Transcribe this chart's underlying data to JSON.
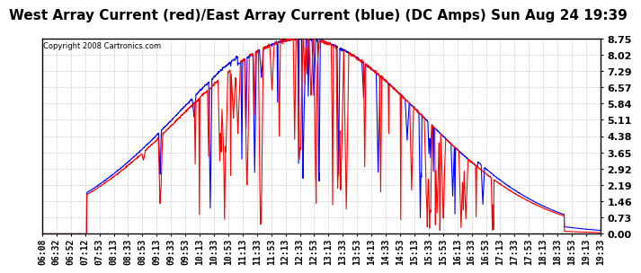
{
  "title": "West Array Current (red)/East Array Current (blue) (DC Amps) Sun Aug 24 19:39",
  "copyright": "Copyright 2008 Cartronics.com",
  "ylabel_right_ticks": [
    0.0,
    0.73,
    1.46,
    2.19,
    2.92,
    3.65,
    4.38,
    5.11,
    5.84,
    6.57,
    7.29,
    8.02,
    8.75
  ],
  "ylim": [
    0.0,
    8.75
  ],
  "x_tick_labels": [
    "06:08",
    "06:32",
    "06:52",
    "07:12",
    "07:53",
    "08:13",
    "08:33",
    "08:53",
    "09:13",
    "09:33",
    "09:53",
    "10:13",
    "10:33",
    "10:53",
    "11:13",
    "11:33",
    "11:53",
    "12:13",
    "12:33",
    "12:53",
    "13:13",
    "13:33",
    "13:53",
    "14:13",
    "14:33",
    "14:53",
    "15:13",
    "15:33",
    "15:53",
    "16:13",
    "16:33",
    "16:53",
    "17:13",
    "17:33",
    "17:53",
    "18:13",
    "18:33",
    "18:53",
    "19:13",
    "19:33"
  ],
  "background_color": "#ffffff",
  "plot_bg_color": "#ffffff",
  "grid_color": "#cccccc",
  "red_color": "#ff0000",
  "blue_color": "#0000ff",
  "title_fontsize": 11,
  "tick_fontsize": 7
}
